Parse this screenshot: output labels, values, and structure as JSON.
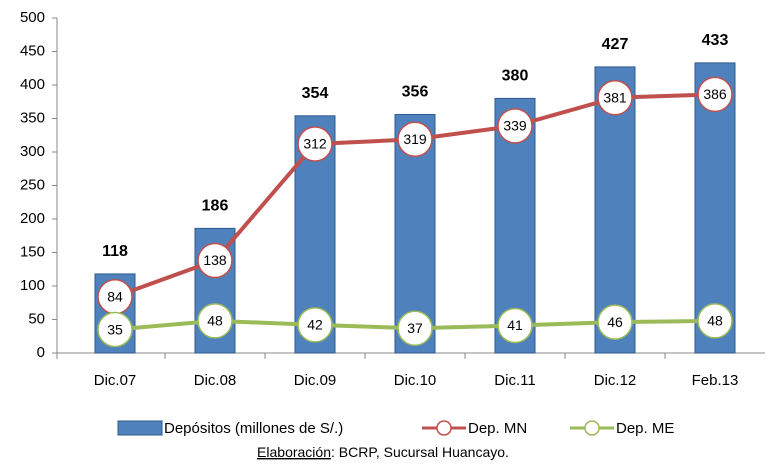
{
  "chart_data": {
    "type": "bar",
    "categories": [
      "Dic.07",
      "Dic.08",
      "Dic.09",
      "Dic.10",
      "Dic.11",
      "Dic.12",
      "Feb.13"
    ],
    "series": [
      {
        "name": "Depósitos (millones de S/.)",
        "type": "bar",
        "color": "#4f81bd",
        "values": [
          118,
          186,
          354,
          356,
          380,
          427,
          433
        ]
      },
      {
        "name": "Dep. MN",
        "type": "line",
        "color": "#c0504d",
        "values": [
          84,
          138,
          312,
          319,
          339,
          381,
          386
        ]
      },
      {
        "name": "Dep. ME",
        "type": "line",
        "color": "#9bbb59",
        "values": [
          35,
          48,
          42,
          37,
          41,
          46,
          48
        ]
      }
    ],
    "ylim": [
      0,
      500
    ],
    "yticks": [
      0,
      50,
      100,
      150,
      200,
      250,
      300,
      350,
      400,
      450,
      500
    ],
    "grid": false,
    "legend": "bottom",
    "source": {
      "label": "Elaboración",
      "text": ": BCRP, Sucursal Huancayo."
    }
  }
}
